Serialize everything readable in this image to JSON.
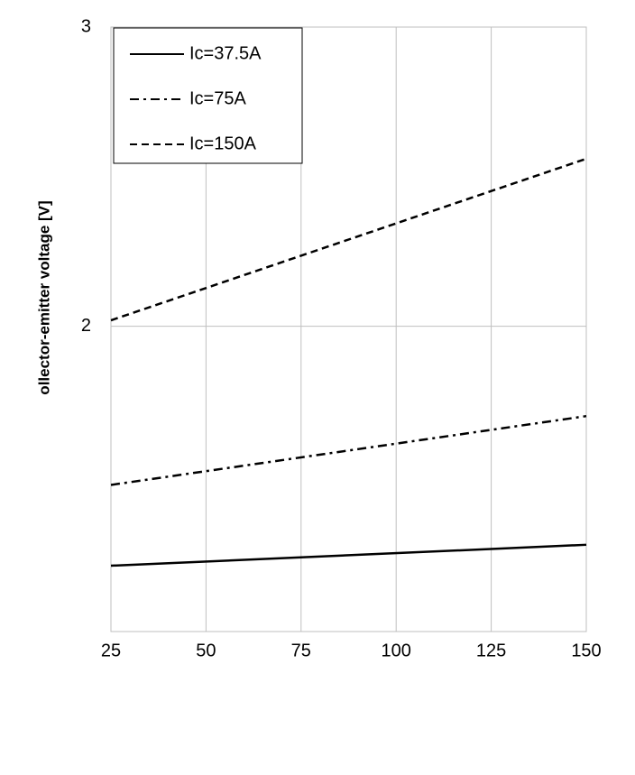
{
  "chart_data": {
    "type": "line",
    "y_label": "ollector-emitter voltage [V]",
    "x": [
      25,
      150
    ],
    "series": [
      {
        "name": "Ic=37.5A",
        "color": "#000000",
        "dash": "solid",
        "values": [
          1.2,
          1.27
        ]
      },
      {
        "name": "Ic=75A",
        "color": "#000000",
        "dash": "dashdot",
        "values": [
          1.47,
          1.7
        ]
      },
      {
        "name": "Ic=150A",
        "color": "#000000",
        "dash": "dashed",
        "values": [
          2.02,
          2.56
        ]
      }
    ],
    "xlim": [
      25,
      150
    ],
    "xticks": [
      25,
      50,
      75,
      100,
      125,
      150
    ],
    "ylim": [
      0.98,
      3
    ],
    "yticks": [
      2,
      3
    ],
    "grid": true,
    "legend": "upper left"
  }
}
